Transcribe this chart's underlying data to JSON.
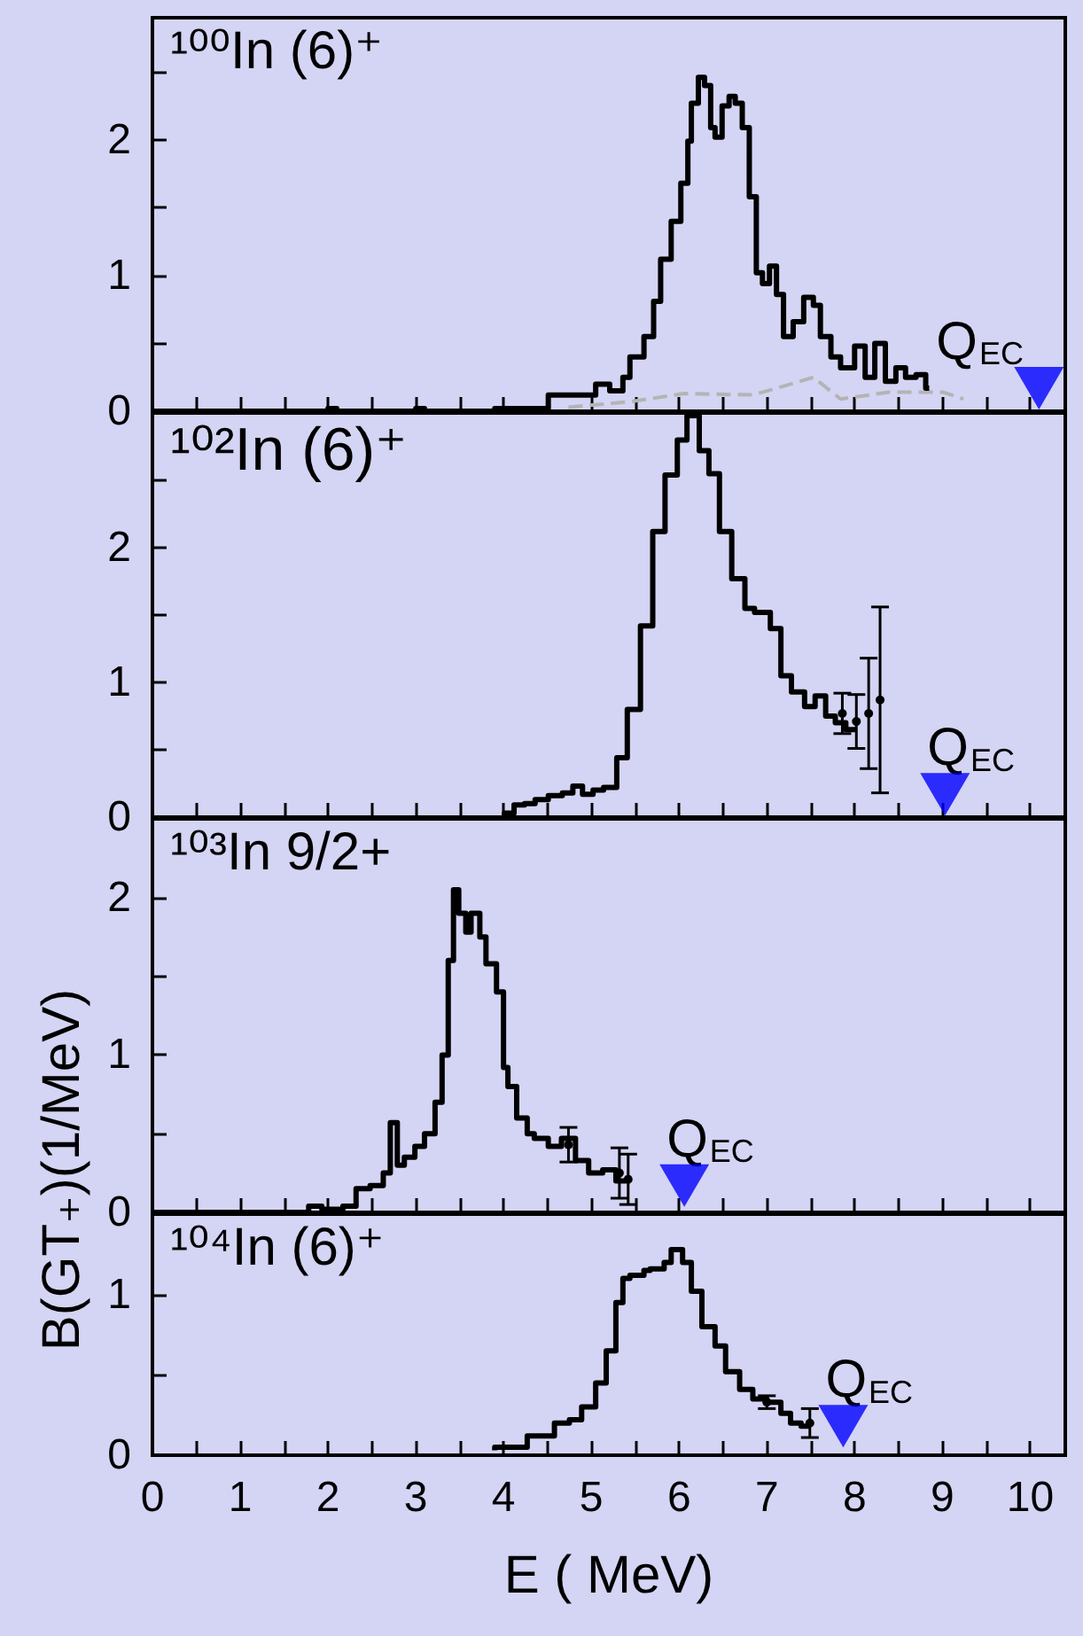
{
  "chart_data": [
    {
      "type": "step",
      "xlim": [
        0,
        10.4
      ],
      "ylim": [
        0,
        2.9
      ],
      "xticks": [
        0,
        {
          "value": 0.5,
          "label": null
        },
        1,
        {
          "value": 1.5,
          "label": null
        },
        2,
        {
          "value": 2.5,
          "label": null
        },
        3,
        {
          "value": 3.5,
          "label": null
        },
        4,
        {
          "value": 4.5,
          "label": null
        },
        5,
        {
          "value": 5.5,
          "label": null
        },
        6,
        {
          "value": 6.5,
          "label": null
        },
        7,
        {
          "value": 7.5,
          "label": null
        },
        8,
        {
          "value": 8.5,
          "label": null
        },
        9,
        {
          "value": 9.5,
          "label": null
        },
        10
      ],
      "yticks": [
        0,
        {
          "value": 0.5,
          "label": null
        },
        1,
        {
          "value": 1.5,
          "label": null
        },
        2,
        {
          "value": 2.5,
          "label": null
        }
      ],
      "tick_labels": "y",
      "annotations": [
        "¹⁰⁰In (6)⁺",
        {
          "text": "Q$_{EC}$",
          "x": 10.1,
          "y": 0.17
        }
      ],
      "series": [
        {
          "color": "#000000",
          "marker": "none",
          "x": [
            0,
            2.0,
            2.1,
            2.2,
            3.0,
            3.1,
            3.3,
            3.9,
            4.0,
            4.51,
            4.74,
            5.05,
            5.21,
            5.36,
            5.44,
            5.6,
            5.71,
            5.79,
            5.91,
            6.02,
            6.1,
            6.14,
            6.22,
            6.29,
            6.36,
            6.41,
            6.49,
            6.57,
            6.64,
            6.72,
            6.8,
            6.88,
            6.95,
            7.03,
            7.11,
            7.19,
            7.3,
            7.42,
            7.53,
            7.61,
            7.73,
            7.84,
            8.0,
            8.12,
            8.23,
            8.35,
            8.47,
            8.58,
            8.7,
            8.81,
            8.85
          ],
          "values": [
            0,
            0,
            0.02,
            0,
            0,
            0.02,
            0,
            0,
            0.02,
            0.02,
            0.12,
            0.12,
            0.2,
            0.15,
            0.25,
            0.4,
            0.55,
            0.81,
            1.12,
            1.4,
            1.68,
            1.99,
            2.27,
            2.46,
            2.4,
            2.09,
            2.02,
            2.25,
            2.32,
            2.27,
            2.09,
            1.58,
            1.02,
            0.94,
            1.07,
            0.86,
            0.55,
            0.66,
            0.84,
            0.78,
            0.55,
            0.4,
            0.32,
            0.48,
            0.25,
            0.5,
            0.22,
            0.32,
            0.25,
            0.27,
            0.17
          ]
        },
        {
          "type": "line",
          "color": "#b4b4b4",
          "marker": "none",
          "line_style": "dashed",
          "x": [
            4.74,
            5.44,
            6.06,
            6.84,
            7.22,
            7.53,
            7.84,
            8.39,
            9.01,
            9.24
          ],
          "values": [
            0.03,
            0.07,
            0.13,
            0.12,
            0.19,
            0.25,
            0.09,
            0.14,
            0.14,
            0.09
          ]
        },
        {
          "type": "scatter",
          "color": "#0000ff",
          "marker": "triangle",
          "x": [
            10.1
          ],
          "values": [
            0.17
          ]
        }
      ]
    },
    {
      "type": "step",
      "xlim": [
        0,
        10.4
      ],
      "ylim": [
        0,
        3
      ],
      "xticks": [
        0,
        {
          "value": 0.5,
          "label": null
        },
        1,
        {
          "value": 1.5,
          "label": null
        },
        2,
        {
          "value": 2.5,
          "label": null
        },
        3,
        {
          "value": 3.5,
          "label": null
        },
        4,
        {
          "value": 4.5,
          "label": null
        },
        5,
        {
          "value": 5.5,
          "label": null
        },
        6,
        {
          "value": 6.5,
          "label": null
        },
        7,
        {
          "value": 7.5,
          "label": null
        },
        8,
        {
          "value": 8.5,
          "label": null
        },
        9,
        {
          "value": 9.5,
          "label": null
        },
        10
      ],
      "yticks": [
        0,
        {
          "value": 0.5,
          "label": null
        },
        1,
        {
          "value": 1.5,
          "label": null
        },
        2,
        {
          "value": 2.5,
          "label": null
        }
      ],
      "tick_labels": "y",
      "annotations": [
        "¹⁰²In (6)⁺",
        {
          "text": "Q$_{EC}$",
          "x": 9.03,
          "y": 0.17
        }
      ],
      "series": [
        {
          "color": "#000000",
          "marker": "none",
          "x": [
            4.01,
            4.12,
            4.24,
            4.36,
            4.51,
            4.67,
            4.79,
            4.9,
            5.02,
            5.14,
            5.29,
            5.41,
            5.56,
            5.7,
            5.84,
            5.98,
            6.09,
            6.23,
            6.34,
            6.46,
            6.6,
            6.75,
            6.86,
            7.04,
            7.16,
            7.28,
            7.43,
            7.55,
            7.67,
            7.78,
            7.9,
            8.02
          ],
          "values": [
            0,
            0.03,
            0.09,
            0.1,
            0.13,
            0.16,
            0.18,
            0.23,
            0.17,
            0.2,
            0.22,
            0.44,
            0.8,
            1.42,
            2.12,
            2.54,
            2.8,
            2.98,
            2.72,
            2.55,
            2.12,
            1.77,
            1.55,
            1.52,
            1.4,
            1.05,
            0.93,
            0.82,
            0.9,
            0.75,
            0.7,
            0.65
          ]
        },
        {
          "type": "scatter",
          "color": "#000000",
          "marker": "circle",
          "x": [
            7.86,
            8.02,
            8.16,
            8.29
          ],
          "values": [
            0.77,
            0.71,
            0.77,
            0.87
          ],
          "errors": [
            0.15,
            0.2,
            0.41,
            0.69
          ]
        },
        {
          "type": "scatter",
          "color": "#0000ff",
          "marker": "triangle",
          "x": [
            9.03
          ],
          "values": [
            0.17
          ]
        }
      ]
    },
    {
      "type": "step",
      "xlim": [
        0,
        10.4
      ],
      "ylim": [
        0,
        2.5
      ],
      "xticks": [
        0,
        {
          "value": 0.5,
          "label": null
        },
        1,
        {
          "value": 1.5,
          "label": null
        },
        2,
        {
          "value": 2.5,
          "label": null
        },
        3,
        {
          "value": 3.5,
          "label": null
        },
        4,
        {
          "value": 4.5,
          "label": null
        },
        5,
        {
          "value": 5.5,
          "label": null
        },
        6,
        {
          "value": 6.5,
          "label": null
        },
        7,
        {
          "value": 7.5,
          "label": null
        },
        8,
        {
          "value": 8.5,
          "label": null
        },
        9,
        {
          "value": 9.5,
          "label": null
        },
        10
      ],
      "yticks": [
        0,
        {
          "value": 0.5,
          "label": null
        },
        1,
        {
          "value": 1.5,
          "label": null
        },
        2
      ],
      "tick_labels": "y",
      "annotations": [
        "¹⁰³In 9/2+",
        {
          "text": "Q$_{EC}$",
          "x": 6.06,
          "y": 0.17
        }
      ],
      "series": [
        {
          "color": "#000000",
          "marker": "none",
          "x": [
            0,
            1.78,
            1.93,
            2.17,
            2.32,
            2.48,
            2.63,
            2.71,
            2.79,
            2.87,
            2.99,
            3.1,
            3.22,
            3.3,
            3.37,
            3.43,
            3.49,
            3.57,
            3.63,
            3.73,
            3.8,
            3.92,
            4.0,
            4.05,
            4.15,
            4.27,
            4.35,
            4.51,
            4.66,
            4.82,
            4.97,
            5.13,
            5.28,
            5.4
          ],
          "values": [
            0,
            0,
            0.04,
            0.02,
            0.04,
            0.15,
            0.17,
            0.25,
            0.57,
            0.3,
            0.35,
            0.42,
            0.5,
            0.7,
            1.0,
            1.6,
            2.05,
            1.9,
            1.78,
            1.9,
            1.75,
            1.58,
            1.4,
            0.92,
            0.8,
            0.6,
            0.5,
            0.47,
            0.42,
            0.47,
            0.33,
            0.25,
            0.27,
            0.2
          ]
        },
        {
          "type": "scatter",
          "color": "#000000",
          "marker": "circle",
          "x": [
            4.74,
            5.32,
            5.42
          ],
          "values": [
            0.43,
            0.25,
            0.21
          ],
          "errors": [
            0.11,
            0.16,
            0.16
          ]
        },
        {
          "type": "scatter",
          "color": "#0000ff",
          "marker": "triangle",
          "x": [
            6.06
          ],
          "values": [
            0.17
          ]
        }
      ]
    },
    {
      "type": "step",
      "xlim": [
        0,
        10.4
      ],
      "ylim": [
        0,
        1.5
      ],
      "xticks": [
        0,
        {
          "value": 0.5,
          "label": null
        },
        1,
        {
          "value": 1.5,
          "label": null
        },
        2,
        {
          "value": 2.5,
          "label": null
        },
        3,
        {
          "value": 3.5,
          "label": null
        },
        4,
        {
          "value": 4.5,
          "label": null
        },
        5,
        {
          "value": 5.5,
          "label": null
        },
        6,
        {
          "value": 6.5,
          "label": null
        },
        7,
        {
          "value": 7.5,
          "label": null
        },
        8,
        {
          "value": 8.5,
          "label": null
        },
        9,
        {
          "value": 9.5,
          "label": null
        },
        10
      ],
      "yticks": [
        0,
        {
          "value": 0.5,
          "label": null
        },
        1
      ],
      "xlabel": "E ( MeV)",
      "ylabel": "B(GT₊)(1/MeV)",
      "annotations": [
        "¹⁰⁴In (6)⁺",
        {
          "text": "Q$_{EC}$",
          "x": 7.87,
          "y": 0.18
        }
      ],
      "series": [
        {
          "color": "#000000",
          "marker": "none",
          "x": [
            3.9,
            4.08,
            4.27,
            4.43,
            4.58,
            4.75,
            4.89,
            5.05,
            5.17,
            5.28,
            5.36,
            5.44,
            5.6,
            5.67,
            5.83,
            5.91,
            6.04,
            6.14,
            6.26,
            6.41,
            6.53,
            6.69,
            6.84,
            7.0,
            7.16,
            7.27,
            7.39,
            7.49
          ],
          "values": [
            0.03,
            0.05,
            0.05,
            0.12,
            0.12,
            0.2,
            0.22,
            0.3,
            0.45,
            0.65,
            0.95,
            1.1,
            1.12,
            1.15,
            1.16,
            1.2,
            1.28,
            1.2,
            1.02,
            0.8,
            0.68,
            0.52,
            0.41,
            0.35,
            0.33,
            0.26,
            0.2,
            0.18
          ]
        },
        {
          "type": "scatter",
          "color": "#000000",
          "marker": "circle",
          "x": [
            7.0,
            7.49
          ],
          "values": [
            0.33,
            0.2
          ],
          "errors": [
            0.04,
            0.09
          ]
        },
        {
          "type": "scatter",
          "color": "#0000ff",
          "marker": "triangle",
          "x": [
            7.87
          ],
          "values": [
            0.18
          ]
        }
      ]
    }
  ]
}
